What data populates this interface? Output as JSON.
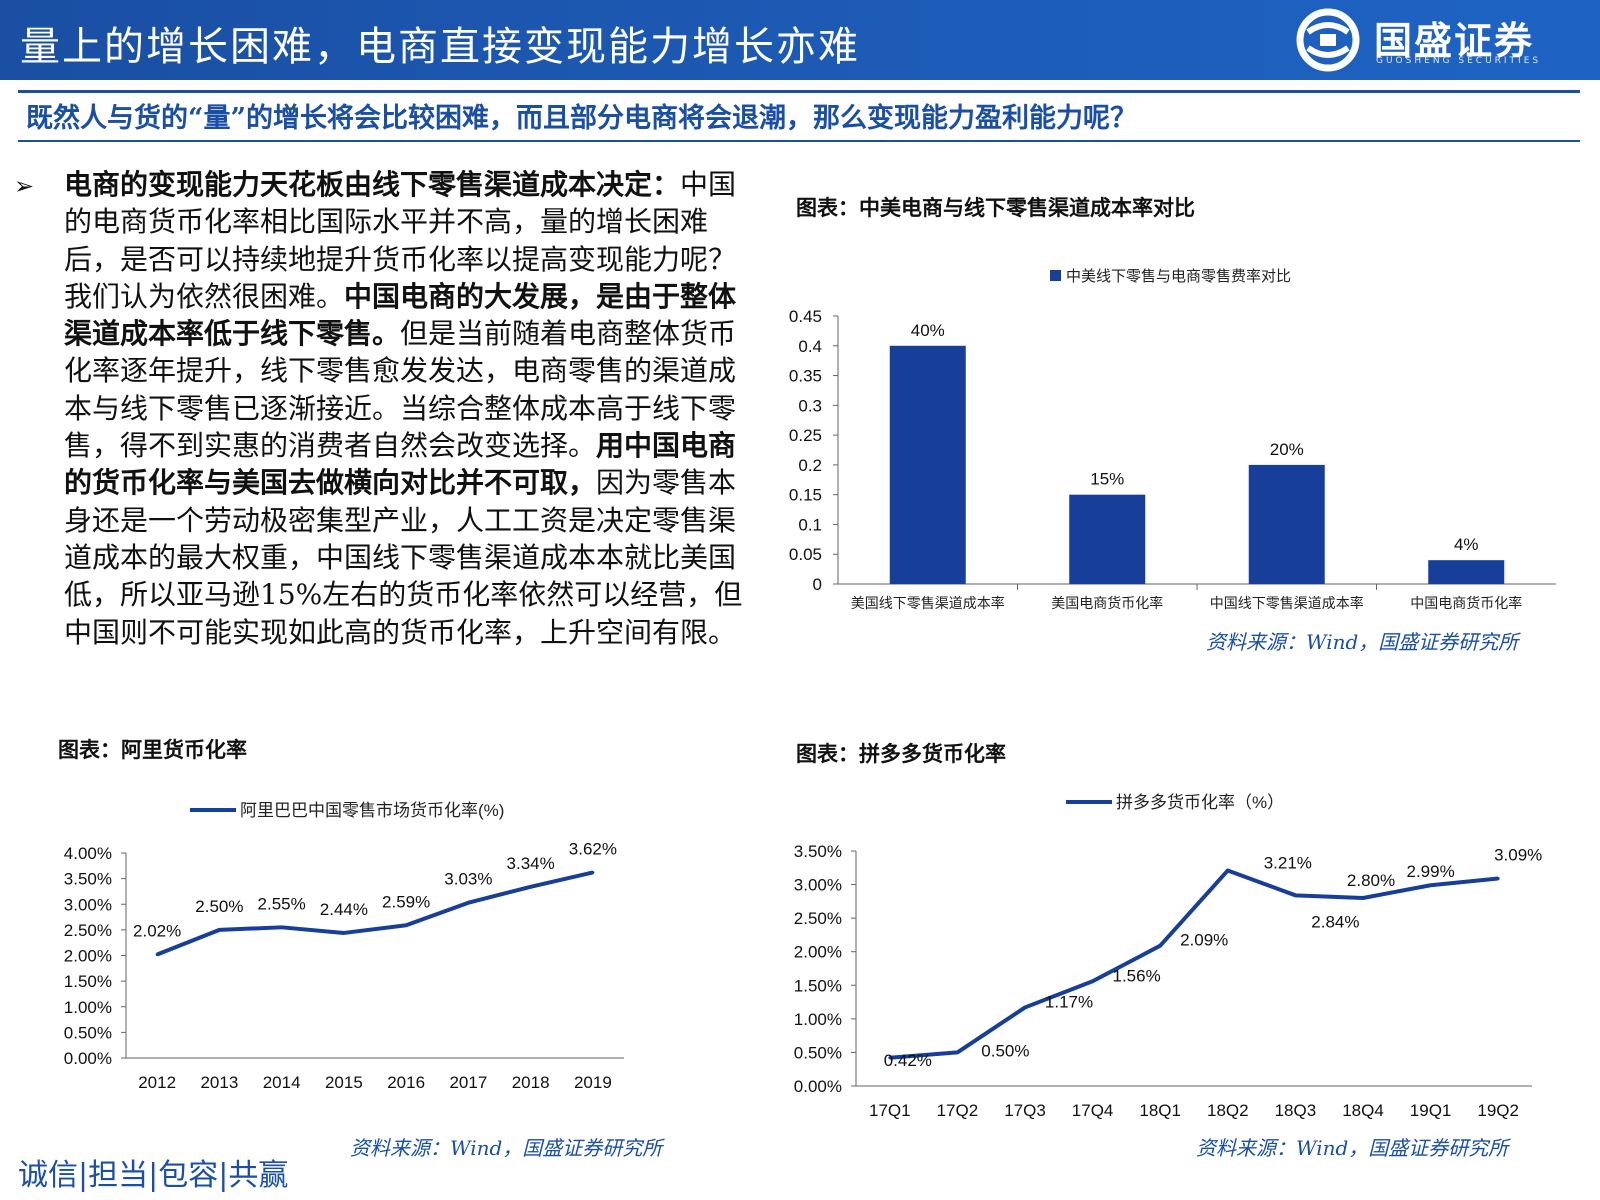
{
  "header": {
    "title": "量上的增长困难，电商直接变现能力增长亦难",
    "logo_name": "国盛证券",
    "logo_sub": "GUOSHENG SECURITIES",
    "logo_icon": "guosheng-logo-icon",
    "bg_color": "#1d5cb8"
  },
  "subheader": "既然人与货的“量”的增长将会比较困难，而且部分电商将会退潮，那么变现能力盈利能力呢？",
  "body": {
    "bullet": "➢",
    "segments": [
      {
        "bold": true,
        "text": "电商的变现能力天花板由线下零售渠道成本决定："
      },
      {
        "bold": false,
        "text": "中国的电商货币化率相比国际水平并不高，量的增长困难后，是否可以持续地提升货币化率以提高变现能力呢？我们认为依然很困难。"
      },
      {
        "bold": true,
        "text": "中国电商的大发展，是由于整体渠道成本率低于线下零售。"
      },
      {
        "bold": false,
        "text": "但是当前随着电商整体货币化率逐年提升，线下零售愈发发达，电商零售的渠道成本与线下零售已逐渐接近。当综合整体成本高于线下零售，得不到实惠的消费者自然会改变选择。"
      },
      {
        "bold": true,
        "text": "用中国电商的货币化率与美国去做横向对比并不可取，"
      },
      {
        "bold": false,
        "text": "因为零售本身还是一个劳动极密集型产业，人工工资是决定零售渠道成本的最大权重，中国线下零售渠道成本本就比美国低，所以亚马逊15%左右的货币化率依然可以经营，但中国则不可能实现如此高的货币化率，上升空间有限。"
      }
    ]
  },
  "captions": {
    "bar": "图表：中美电商与线下零售渠道成本率对比",
    "ali": "图表：阿里货币化率",
    "pdd": "图表：拼多多货币化率"
  },
  "sources": {
    "bar": "资料来源：Wind，国盛证券研究所",
    "ali": "资料来源：Wind，国盛证券研究所",
    "pdd": "资料来源：Wind，国盛证券研究所"
  },
  "footer": {
    "slogan": "诚信|担当|包容|共赢"
  },
  "chart_data": [
    {
      "id": "bar",
      "type": "bar",
      "legend": "top",
      "categories": [
        "美国线下零售渠道成本率",
        "美国电商货币化率",
        "中国线下零售渠道成本率",
        "中国电商货币化率"
      ],
      "series": [
        {
          "name": "中美线下零售与电商零售费率对比",
          "values": [
            0.4,
            0.15,
            0.2,
            0.04
          ]
        }
      ],
      "data_labels": [
        "40%",
        "15%",
        "20%",
        "4%"
      ],
      "yticks": [
        "0",
        "0.05",
        "0.1",
        "0.15",
        "0.2",
        "0.25",
        "0.3",
        "0.35",
        "0.4",
        "0.45"
      ],
      "ylim": [
        0,
        0.45
      ],
      "grid": false,
      "color": "#173f9a"
    },
    {
      "id": "ali",
      "type": "line",
      "legend": "top",
      "x": [
        "2012",
        "2013",
        "2014",
        "2015",
        "2016",
        "2017",
        "2018",
        "2019"
      ],
      "series": [
        {
          "name": "阿里巴巴中国零售市场货币化率(%)",
          "values": [
            2.02,
            2.5,
            2.55,
            2.44,
            2.59,
            3.03,
            3.34,
            3.62
          ]
        }
      ],
      "data_labels": [
        "2.02%",
        "2.50%",
        "2.55%",
        "2.44%",
        "2.59%",
        "3.03%",
        "3.34%",
        "3.62%"
      ],
      "yticks": [
        "0.00%",
        "0.50%",
        "1.00%",
        "1.50%",
        "2.00%",
        "2.50%",
        "3.00%",
        "3.50%",
        "4.00%"
      ],
      "ylim": [
        0,
        4.0
      ],
      "grid": false,
      "color": "#173f9a"
    },
    {
      "id": "pdd",
      "type": "line",
      "legend": "top",
      "x": [
        "17Q1",
        "17Q2",
        "17Q3",
        "17Q4",
        "18Q1",
        "18Q2",
        "18Q3",
        "18Q4",
        "19Q1",
        "19Q2"
      ],
      "series": [
        {
          "name": "拼多多货币化率（%）",
          "values": [
            0.42,
            0.5,
            1.17,
            1.56,
            2.09,
            3.21,
            2.84,
            2.8,
            2.99,
            3.09
          ]
        }
      ],
      "data_labels": [
        "0.42%",
        "0.50%",
        "1.17%",
        "1.56%",
        "2.09%",
        "3.21%",
        "2.84%",
        "2.80%",
        "2.99%",
        "3.09%"
      ],
      "yticks": [
        "0.00%",
        "0.50%",
        "1.00%",
        "1.50%",
        "2.00%",
        "2.50%",
        "3.00%",
        "3.50%"
      ],
      "ylim": [
        0,
        3.5
      ],
      "grid": false,
      "color": "#173f9a"
    }
  ]
}
